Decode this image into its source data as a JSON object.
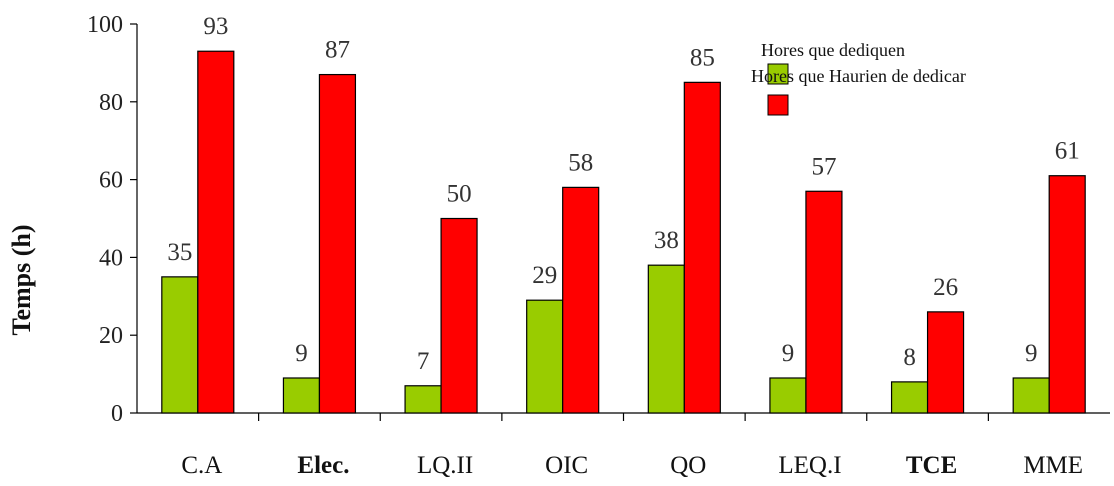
{
  "chart_data": {
    "type": "bar",
    "ylabel": "Temps (h)",
    "ylim": [
      0,
      100
    ],
    "yticks": [
      0,
      20,
      40,
      60,
      80,
      100
    ],
    "categories": [
      "C.A",
      "Elec.",
      "LQ.II",
      "OIC",
      "QO",
      "LEQ.I",
      "TCE",
      "MME"
    ],
    "series": [
      {
        "name": "Hores que dediquen",
        "color": "#99cc00",
        "values": [
          35,
          9,
          7,
          29,
          38,
          9,
          8,
          9
        ]
      },
      {
        "name": "Hores que Haurien de dedicar",
        "color": "#ff0000",
        "values": [
          93,
          87,
          50,
          58,
          85,
          57,
          26,
          61
        ]
      }
    ],
    "legend_position": "top-right",
    "grid": false
  }
}
